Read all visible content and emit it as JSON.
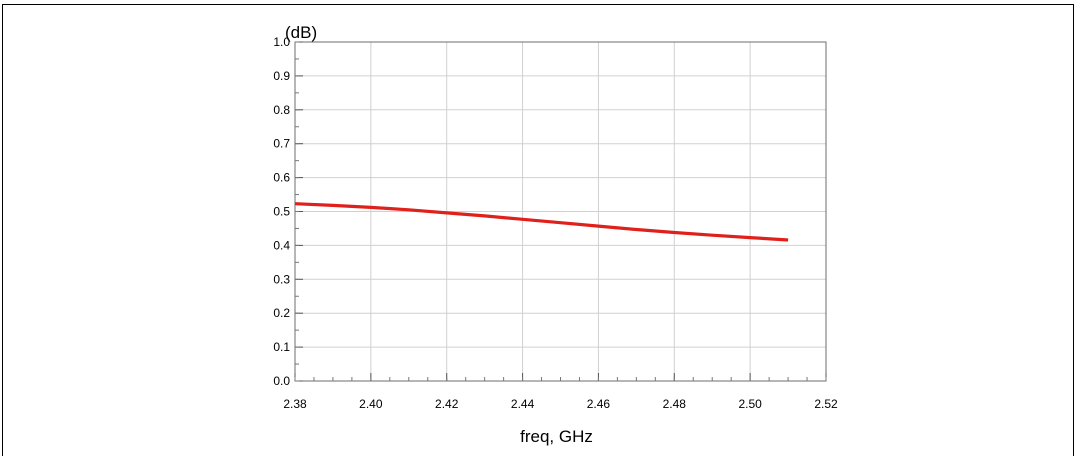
{
  "chart_data": {
    "type": "line",
    "title": "",
    "xlabel": "freq, GHz",
    "ylabel": "(dB)",
    "xlim": [
      2.38,
      2.52
    ],
    "ylim": [
      0.0,
      1.0
    ],
    "xticks": [
      "2.38",
      "2.40",
      "2.42",
      "2.44",
      "2.46",
      "2.48",
      "2.50",
      "2.52"
    ],
    "yticks": [
      "0.0",
      "0.1",
      "0.2",
      "0.3",
      "0.4",
      "0.5",
      "0.6",
      "0.7",
      "0.8",
      "0.9",
      "1.0"
    ],
    "grid": true,
    "series": [
      {
        "color": "#e0201b",
        "x": [
          2.38,
          2.39,
          2.4,
          2.41,
          2.42,
          2.43,
          2.44,
          2.45,
          2.46,
          2.47,
          2.48,
          2.49,
          2.5,
          2.51
        ],
        "y": [
          0.523,
          0.518,
          0.512,
          0.505,
          0.496,
          0.487,
          0.477,
          0.467,
          0.457,
          0.447,
          0.438,
          0.43,
          0.423,
          0.416
        ]
      }
    ]
  }
}
